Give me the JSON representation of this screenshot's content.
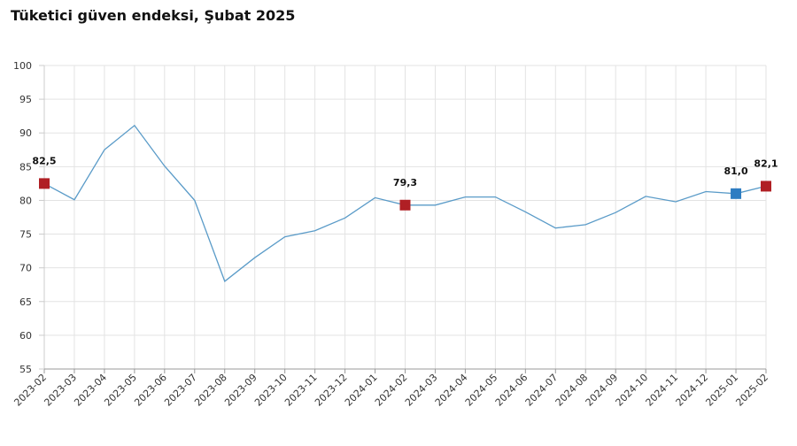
{
  "chart_data": {
    "type": "line",
    "title": "Tüketici güven endeksi, Şubat 2025",
    "categories": [
      "2023-02",
      "2023-03",
      "2023-04",
      "2023-05",
      "2023-06",
      "2023-07",
      "2023-08",
      "2023-09",
      "2023-10",
      "2023-11",
      "2023-12",
      "2024-01",
      "2024-02",
      "2024-03",
      "2024-04",
      "2024-05",
      "2024-06",
      "2024-07",
      "2024-08",
      "2024-09",
      "2024-10",
      "2024-11",
      "2024-12",
      "2025-01",
      "2025-02"
    ],
    "values": [
      82.5,
      80.1,
      87.5,
      91.1,
      85.1,
      80.0,
      68.0,
      71.5,
      74.6,
      75.5,
      77.4,
      80.4,
      79.3,
      79.3,
      80.5,
      80.5,
      78.3,
      75.9,
      76.4,
      78.2,
      80.6,
      79.8,
      81.3,
      81.0,
      82.1
    ],
    "ylim": [
      55,
      100
    ],
    "yticks": [
      55,
      60,
      65,
      70,
      75,
      80,
      85,
      90,
      95,
      100
    ],
    "grid": true,
    "line_color": "#5a9bc8",
    "highlights": [
      {
        "index": 0,
        "label": "82,5",
        "color": "#b01f24"
      },
      {
        "index": 12,
        "label": "79,3",
        "color": "#b01f24"
      },
      {
        "index": 23,
        "label": "81,0",
        "color": "#2e7dc2"
      },
      {
        "index": 24,
        "label": "82,1",
        "color": "#b01f24"
      }
    ]
  }
}
